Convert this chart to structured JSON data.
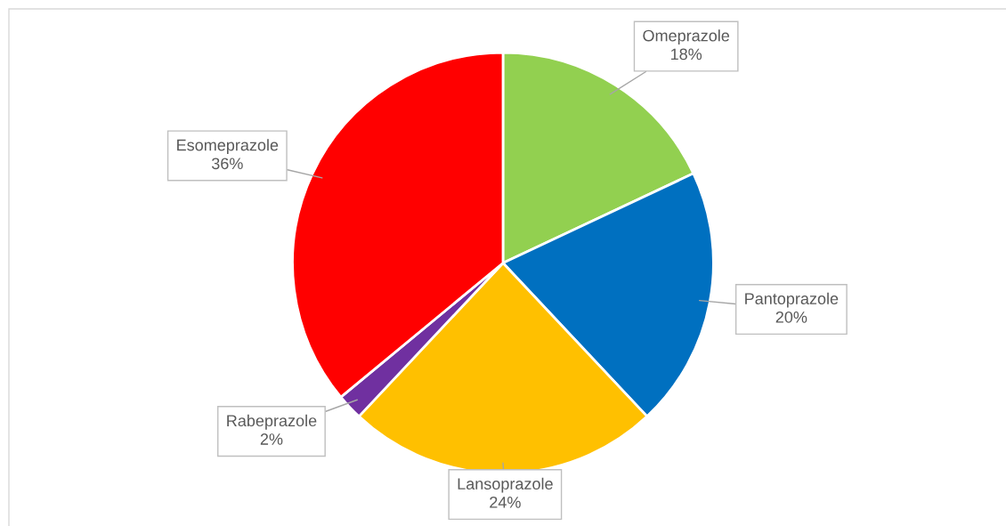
{
  "chart_data": {
    "type": "pie",
    "categories": [
      "Omeprazole",
      "Pantoprazole",
      "Lansoprazole",
      "Rabeprazole",
      "Esomeprazole"
    ],
    "values": [
      18,
      20,
      24,
      2,
      36
    ],
    "value_labels": [
      "18%",
      "20%",
      "24%",
      "2%",
      "36%"
    ],
    "colors": [
      "#92d050",
      "#0070c0",
      "#ffc000",
      "#7030a0",
      "#ff0000"
    ]
  }
}
